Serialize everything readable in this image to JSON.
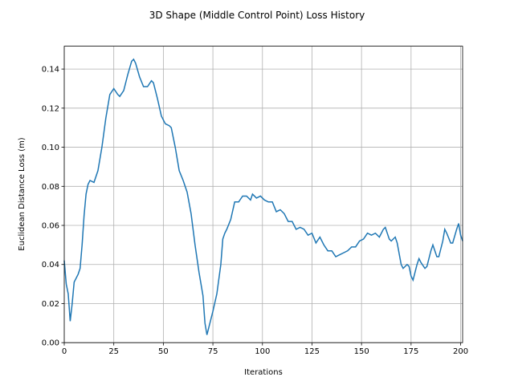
{
  "chart_data": {
    "type": "line",
    "title": "3D Shape (Middle Control Point) Loss History",
    "xlabel": "Iterations",
    "ylabel": "Euclidean Distance Loss (m)",
    "xlim": [
      0,
      201
    ],
    "ylim": [
      0,
      0.1517
    ],
    "xticks": [
      0,
      25,
      50,
      75,
      100,
      125,
      150,
      175,
      200
    ],
    "yticks": [
      {
        "value": 0,
        "label": "0.00"
      },
      {
        "value": 0.02,
        "label": "0.02"
      },
      {
        "value": 0.04,
        "label": "0.04"
      },
      {
        "value": 0.06,
        "label": "0.06"
      },
      {
        "value": 0.08,
        "label": "0.08"
      },
      {
        "value": 0.1,
        "label": "0.10"
      },
      {
        "value": 0.12,
        "label": "0.12"
      },
      {
        "value": 0.14,
        "label": "0.14"
      }
    ],
    "grid": true,
    "x": [
      0,
      1,
      2,
      3,
      4,
      5,
      7,
      8,
      9,
      10,
      11,
      12,
      13,
      15,
      17,
      19,
      21,
      23,
      25,
      27,
      28,
      30,
      32,
      34,
      35,
      36,
      38,
      40,
      42,
      44,
      45,
      47,
      49,
      51,
      53,
      54,
      56,
      58,
      60,
      62,
      64,
      66,
      68,
      70,
      71,
      72,
      73,
      75,
      77,
      79,
      80,
      81,
      82,
      84,
      86,
      88,
      90,
      92,
      94,
      95,
      97,
      99,
      101,
      103,
      105,
      107,
      109,
      111,
      113,
      115,
      117,
      119,
      121,
      123,
      125,
      127,
      129,
      131,
      133,
      135,
      137,
      139,
      141,
      143,
      145,
      147,
      149,
      151,
      153,
      155,
      157,
      159,
      161,
      162,
      164,
      165,
      167,
      168,
      170,
      171,
      173,
      174,
      175,
      176,
      178,
      179,
      180,
      182,
      183,
      185,
      186,
      188,
      189,
      191,
      192,
      193,
      195,
      196,
      198,
      199,
      200,
      201
    ],
    "series": [
      {
        "name": "loss",
        "color": "#1f77b4",
        "values": [
          0.042,
          0.03,
          0.025,
          0.011,
          0.02,
          0.031,
          0.035,
          0.038,
          0.05,
          0.065,
          0.076,
          0.081,
          0.083,
          0.082,
          0.088,
          0.1,
          0.115,
          0.127,
          0.13,
          0.127,
          0.126,
          0.129,
          0.137,
          0.144,
          0.145,
          0.143,
          0.136,
          0.131,
          0.131,
          0.134,
          0.133,
          0.125,
          0.116,
          0.112,
          0.111,
          0.11,
          0.1,
          0.088,
          0.083,
          0.077,
          0.066,
          0.05,
          0.036,
          0.024,
          0.01,
          0.004,
          0.008,
          0.016,
          0.025,
          0.04,
          0.053,
          0.056,
          0.058,
          0.063,
          0.072,
          0.072,
          0.075,
          0.075,
          0.073,
          0.076,
          0.074,
          0.075,
          0.073,
          0.072,
          0.072,
          0.067,
          0.068,
          0.066,
          0.062,
          0.062,
          0.058,
          0.059,
          0.058,
          0.055,
          0.056,
          0.051,
          0.054,
          0.05,
          0.047,
          0.047,
          0.044,
          0.045,
          0.046,
          0.047,
          0.049,
          0.049,
          0.052,
          0.053,
          0.056,
          0.055,
          0.056,
          0.054,
          0.058,
          0.059,
          0.053,
          0.052,
          0.054,
          0.051,
          0.04,
          0.038,
          0.04,
          0.039,
          0.034,
          0.032,
          0.04,
          0.043,
          0.041,
          0.038,
          0.039,
          0.047,
          0.05,
          0.044,
          0.044,
          0.052,
          0.058,
          0.056,
          0.051,
          0.051,
          0.058,
          0.061,
          0.055,
          0.052
        ]
      }
    ]
  }
}
